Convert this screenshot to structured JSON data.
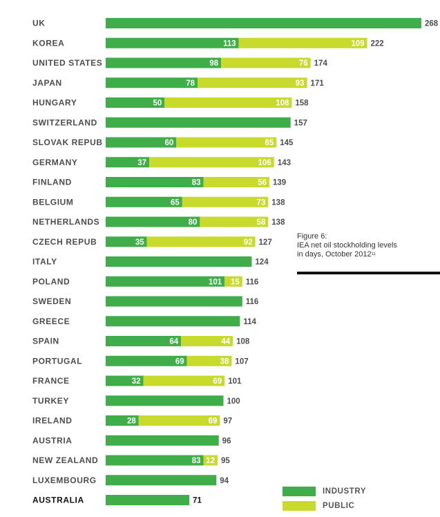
{
  "chart_data": {
    "type": "bar",
    "orientation": "horizontal",
    "stacked": true,
    "title": "IEA net oil stockholding levels in days, October 2012",
    "figure_label": "Figure 6:",
    "title_line1": "IEA net oil stockholding levels",
    "title_line2": "in days, October 2012",
    "footnote_marker": "11",
    "xlabel": "",
    "ylabel": "",
    "xlim": [
      0,
      268
    ],
    "highlight": "AUSTRALIA",
    "series": [
      {
        "name": "INDUSTRY",
        "color": "#3fae49"
      },
      {
        "name": "PUBLIC",
        "color": "#c8da2b"
      }
    ],
    "legend": {
      "position": "bottom-right",
      "items": [
        "INDUSTRY",
        "PUBLIC"
      ]
    },
    "rows": [
      {
        "country": "UK",
        "industry": null,
        "public": null,
        "total": 268
      },
      {
        "country": "KOREA",
        "industry": 113,
        "public": 109,
        "total": 222
      },
      {
        "country": "UNITED STATES",
        "industry": 98,
        "public": 76,
        "total": 174
      },
      {
        "country": "JAPAN",
        "industry": 78,
        "public": 93,
        "total": 171
      },
      {
        "country": "HUNGARY",
        "industry": 50,
        "public": 108,
        "total": 158
      },
      {
        "country": "SWITZERLAND",
        "industry": null,
        "public": null,
        "total": 157
      },
      {
        "country": "SLOVAK REPUB",
        "industry": 60,
        "public": 85,
        "total": 145
      },
      {
        "country": "GERMANY",
        "industry": 37,
        "public": 106,
        "total": 143
      },
      {
        "country": "FINLAND",
        "industry": 83,
        "public": 56,
        "total": 139
      },
      {
        "country": "BELGIUM",
        "industry": 65,
        "public": 73,
        "total": 138
      },
      {
        "country": "NETHERLANDS",
        "industry": 80,
        "public": 58,
        "total": 138
      },
      {
        "country": "CZECH REPUB",
        "industry": 35,
        "public": 92,
        "total": 127
      },
      {
        "country": "ITALY",
        "industry": null,
        "public": null,
        "total": 124
      },
      {
        "country": "POLAND",
        "industry": 101,
        "public": 15,
        "total": 116
      },
      {
        "country": "SWEDEN",
        "industry": null,
        "public": null,
        "total": 116
      },
      {
        "country": "GREECE",
        "industry": null,
        "public": null,
        "total": 114
      },
      {
        "country": "SPAIN",
        "industry": 64,
        "public": 44,
        "total": 108
      },
      {
        "country": "PORTUGAL",
        "industry": 69,
        "public": 38,
        "total": 107
      },
      {
        "country": "FRANCE",
        "industry": 32,
        "public": 69,
        "total": 101
      },
      {
        "country": "TURKEY",
        "industry": null,
        "public": null,
        "total": 100
      },
      {
        "country": "IRELAND",
        "industry": 28,
        "public": 69,
        "total": 97
      },
      {
        "country": "AUSTRIA",
        "industry": null,
        "public": null,
        "total": 96
      },
      {
        "country": "NEW ZEALAND",
        "industry": 83,
        "public": 12,
        "total": 95
      },
      {
        "country": "LUXEMBOURG",
        "industry": null,
        "public": null,
        "total": 94
      },
      {
        "country": "AUSTRALIA",
        "industry": null,
        "public": null,
        "total": 71
      }
    ]
  }
}
